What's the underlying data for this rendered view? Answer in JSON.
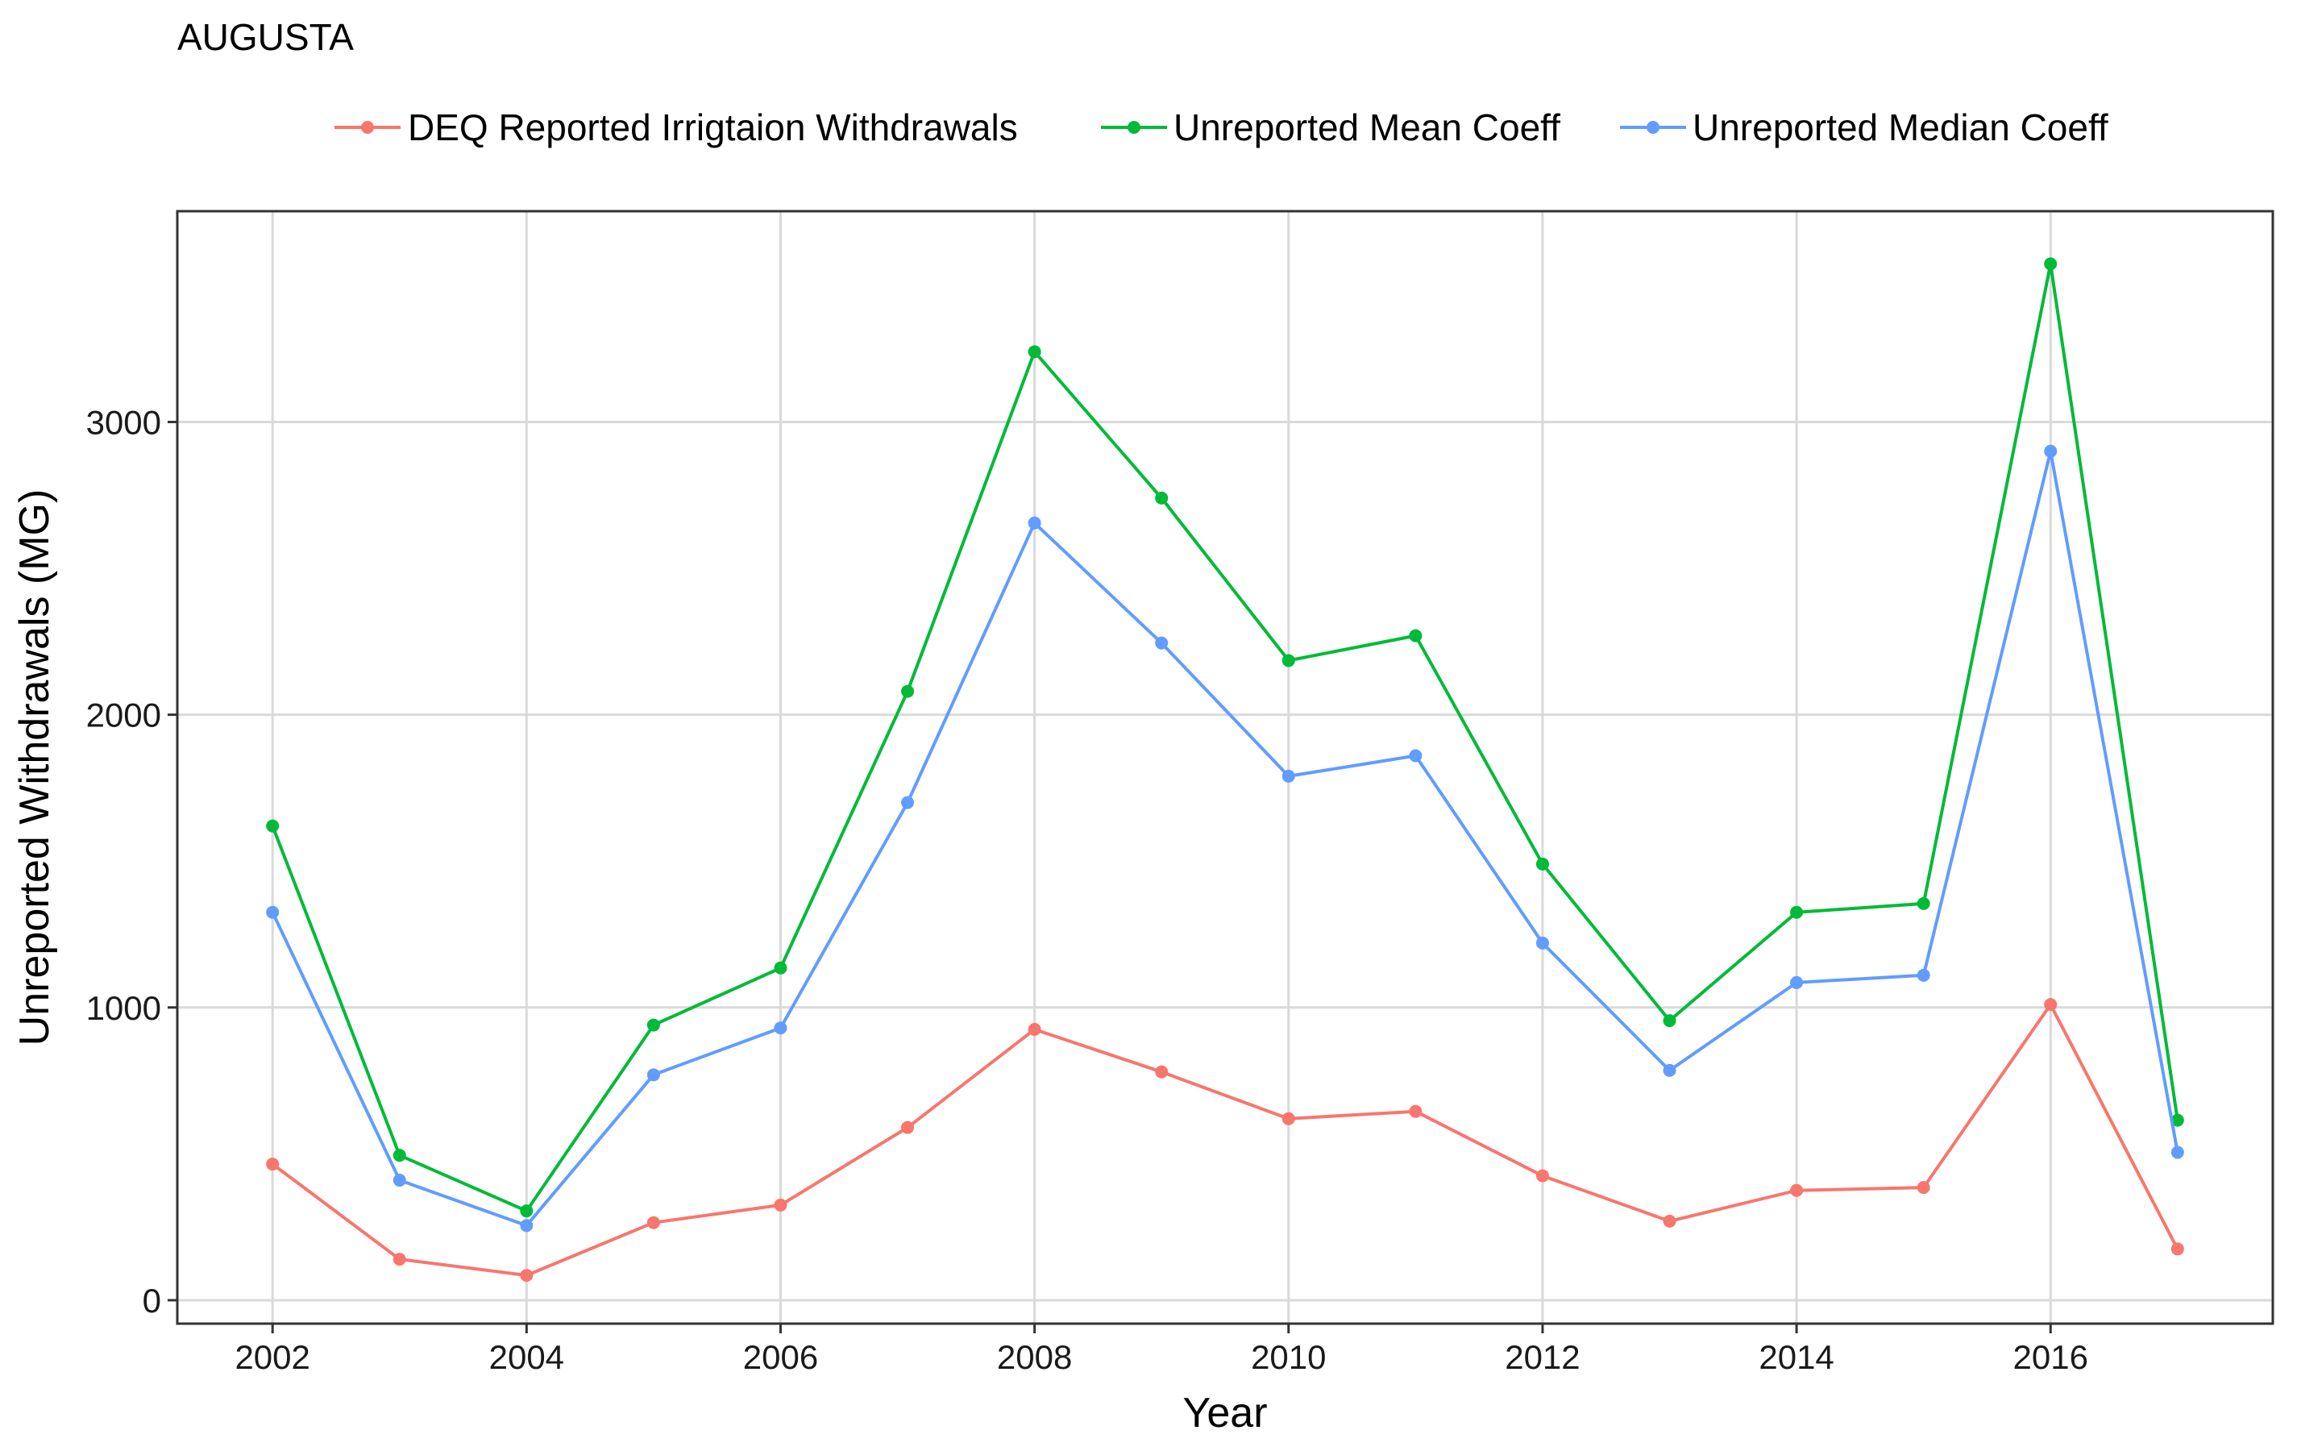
{
  "title": "AUGUSTA",
  "chart_data": {
    "type": "line",
    "title": "AUGUSTA",
    "xlabel": "Year",
    "ylabel": "Unreported Withdrawals (MG)",
    "x": [
      2002,
      2003,
      2004,
      2005,
      2006,
      2007,
      2008,
      2009,
      2010,
      2011,
      2012,
      2013,
      2014,
      2015,
      2016,
      2017
    ],
    "xlim": [
      2001.25,
      2017.75
    ],
    "ylim": [
      -80,
      3720
    ],
    "x_ticks": [
      2002,
      2004,
      2006,
      2008,
      2010,
      2012,
      2014,
      2016
    ],
    "y_ticks": [
      0,
      1000,
      2000,
      3000
    ],
    "grid": true,
    "legend_position": "top",
    "series": [
      {
        "name": "DEQ Reported Irrigtaion Withdrawals",
        "color": "#F8766D",
        "values": [
          465,
          140,
          85,
          265,
          325,
          590,
          925,
          780,
          620,
          645,
          425,
          270,
          375,
          385,
          1010,
          175
        ]
      },
      {
        "name": "Unreported Mean Coeff",
        "color": "#00BA38",
        "values": [
          1620,
          495,
          305,
          940,
          1135,
          2080,
          3240,
          2740,
          2185,
          2270,
          1490,
          955,
          1325,
          1355,
          3540,
          615
        ]
      },
      {
        "name": "Unreported Median Coeff",
        "color": "#619CFF",
        "values": [
          1325,
          410,
          255,
          770,
          930,
          1700,
          2655,
          2245,
          1790,
          1860,
          1220,
          785,
          1085,
          1110,
          2900,
          505
        ]
      }
    ]
  }
}
